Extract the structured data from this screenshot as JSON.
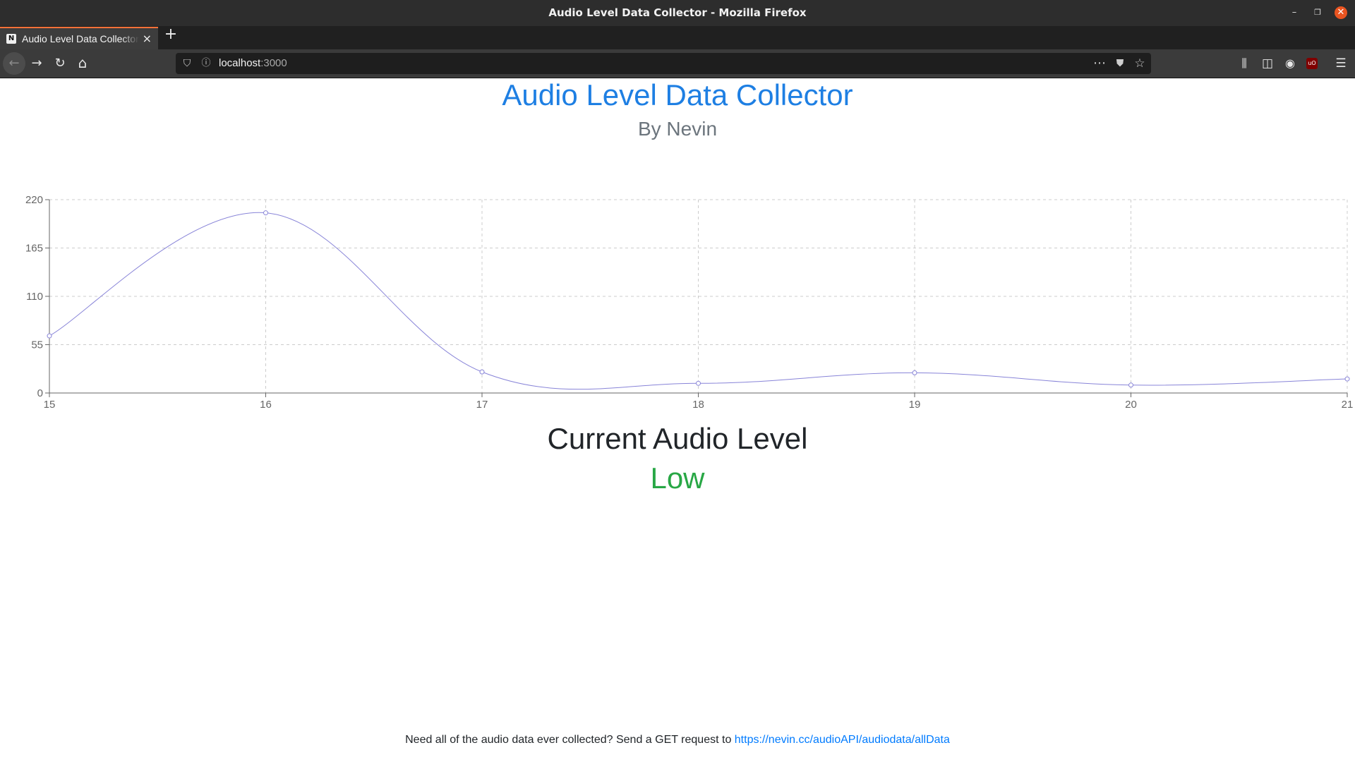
{
  "window": {
    "title": "Audio Level Data Collector - Mozilla Firefox",
    "minimize_glyph": "–",
    "restore_glyph": "❐",
    "close_glyph": "✕"
  },
  "tabs": [
    {
      "label": "Audio Level Data Collector",
      "favicon": "N",
      "active": true
    }
  ],
  "tab_close_glyph": "×",
  "new_tab_glyph": "+",
  "navbar": {
    "url_host": "localhost",
    "url_port": ":3000",
    "icons": {
      "back": "back-arrow-icon",
      "forward": "forward-arrow-icon",
      "reload": "reload-icon",
      "home": "home-icon",
      "shield": "tracking-shield-icon",
      "info": "site-info-icon",
      "more": "page-actions-icon",
      "pocket": "pocket-icon",
      "bookmark": "bookmark-star-icon",
      "library": "library-icon",
      "sidebar": "sidebar-icon",
      "account": "account-icon",
      "ublock": "ublock-icon",
      "menu": "hamburger-menu-icon"
    },
    "glyphs": {
      "back": "←",
      "forward": "→",
      "reload": "↻",
      "home": "⌂",
      "shield": "⛉",
      "info": "ⓘ",
      "more": "⋯",
      "pocket": "⛊",
      "bookmark": "☆",
      "library": "⫼",
      "sidebar": "◫",
      "account": "◉",
      "ublock": "uO",
      "menu": "☰"
    }
  },
  "page": {
    "title": "Audio Level Data Collector",
    "subtitle": "By Nevin",
    "current_heading": "Current Audio Level",
    "current_value": "Low",
    "current_value_color": "#28a745",
    "title_color": "#1e7fe3",
    "footer_text": "Need all of the audio data ever collected? Send a GET request to ",
    "footer_link": "https://nevin.cc/audioAPI/audiodata/allData"
  },
  "chart_data": {
    "type": "line",
    "x": [
      15,
      16,
      17,
      18,
      19,
      20,
      21
    ],
    "series": [
      {
        "values": [
          65,
          205,
          24,
          11,
          23,
          9,
          16
        ],
        "color": "#8884d8"
      }
    ],
    "xticks": [
      15,
      16,
      17,
      18,
      19,
      20,
      21
    ],
    "yticks": [
      0,
      55,
      110,
      165,
      220
    ],
    "xlim": [
      15,
      21
    ],
    "ylim": [
      0,
      220
    ],
    "curve": "smooth",
    "grid": true,
    "grid_style": "dashed",
    "title": "",
    "xlabel": "",
    "ylabel": ""
  }
}
